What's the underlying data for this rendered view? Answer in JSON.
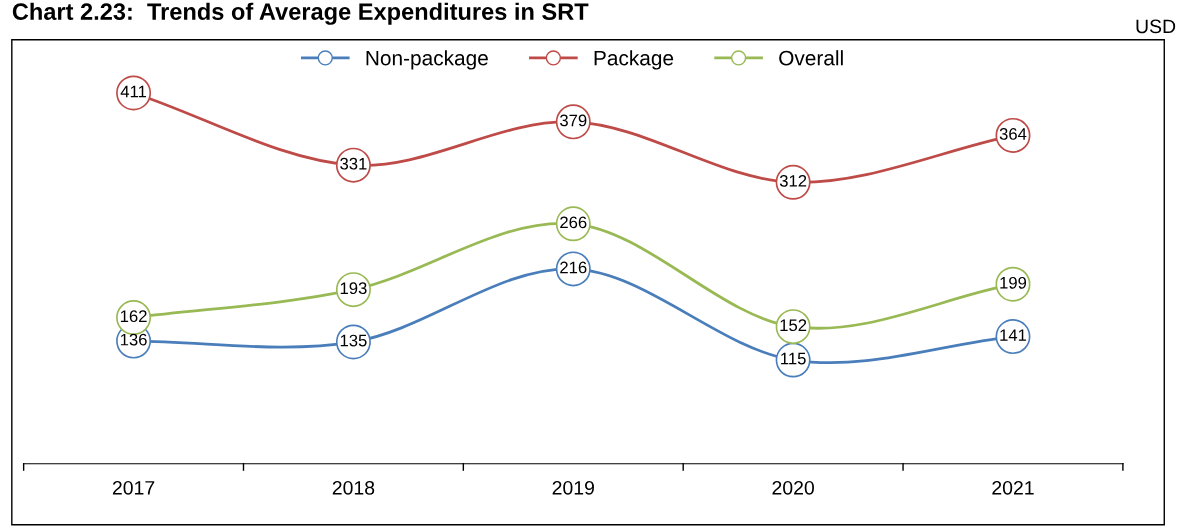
{
  "chart_data": {
    "type": "line",
    "title": "Chart 2.23:  Trends of Average Expenditures in SRT",
    "ylabel": "USD",
    "categories": [
      "2017",
      "2018",
      "2019",
      "2020",
      "2021"
    ],
    "series": [
      {
        "name": "Non-package",
        "color": "#4a7ebb",
        "values": [
          136,
          135,
          216,
          115,
          141
        ]
      },
      {
        "name": "Package",
        "color": "#be4b48",
        "values": [
          411,
          331,
          379,
          312,
          364
        ]
      },
      {
        "name": "Overall",
        "color": "#98b954",
        "values": [
          162,
          193,
          266,
          152,
          199
        ]
      }
    ],
    "ylim": [
      0,
      470
    ],
    "data_labels": true,
    "legend": "top",
    "marker": "circle",
    "line_style": "solid",
    "grid": false
  }
}
